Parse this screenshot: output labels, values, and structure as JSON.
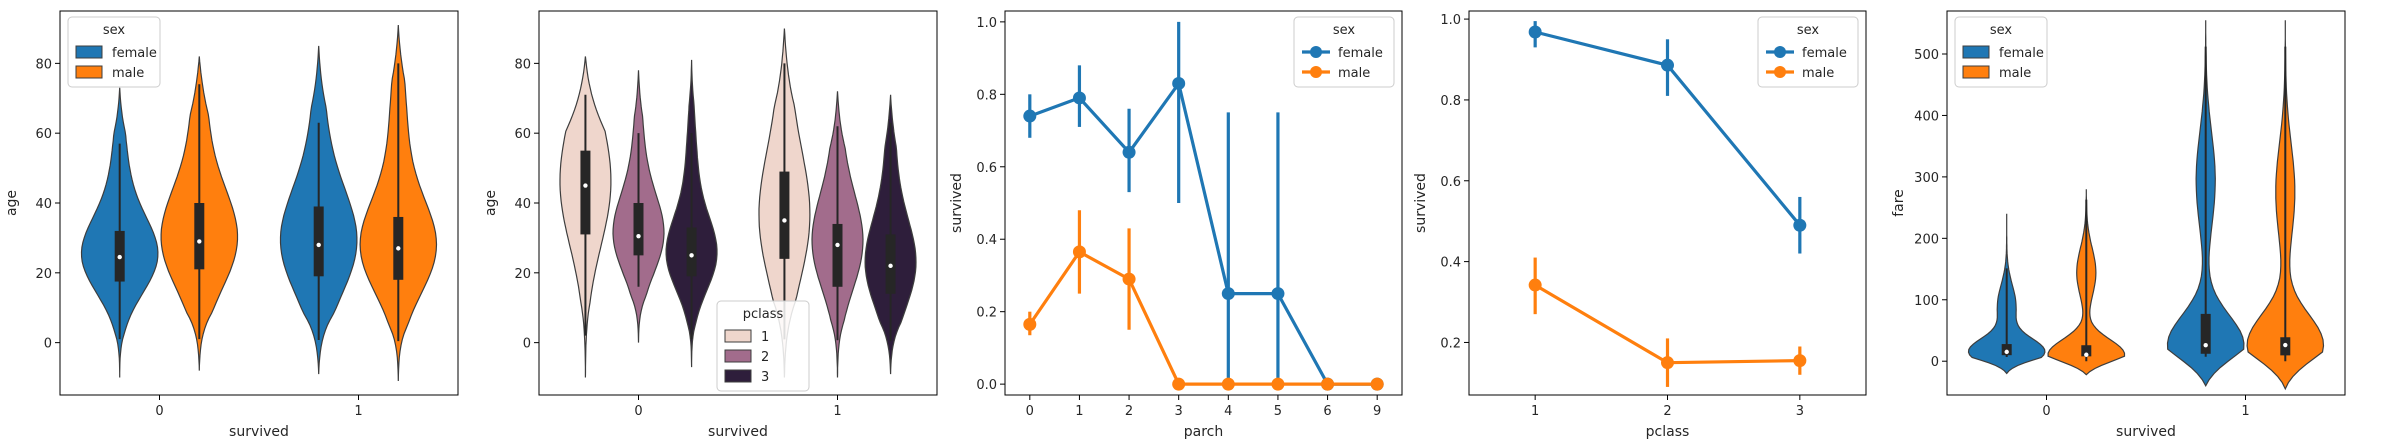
{
  "colors": {
    "female": "#1f77b4",
    "male": "#ff7f0e",
    "pclass_1": "#efd6cc",
    "pclass_2": "#a26c8c",
    "pclass_3": "#2e1e3b",
    "box": "#262626",
    "axis": "#000000"
  },
  "chart_data": [
    {
      "type": "violin",
      "xlabel": "survived",
      "ylabel": "age",
      "categories": [
        "0",
        "1"
      ],
      "hue_label": "sex",
      "hue": [
        "female",
        "male"
      ],
      "ylim": [
        -15,
        95
      ],
      "yticks": [
        0,
        20,
        40,
        60,
        80
      ],
      "legend_position": "top-left",
      "series": [
        {
          "name": "female",
          "category": "0",
          "min": 1,
          "q1": 17.5,
          "median": 24.5,
          "q3": 32,
          "max": 57,
          "kde_range": [
            -10,
            73
          ]
        },
        {
          "name": "male",
          "category": "0",
          "min": 1,
          "q1": 21,
          "median": 29,
          "q3": 40,
          "max": 74,
          "kde_range": [
            -8,
            82
          ]
        },
        {
          "name": "female",
          "category": "1",
          "min": 0.75,
          "q1": 19,
          "median": 28,
          "q3": 39,
          "max": 63,
          "kde_range": [
            -9,
            85
          ]
        },
        {
          "name": "male",
          "category": "1",
          "min": 0.42,
          "q1": 18,
          "median": 27,
          "q3": 36,
          "max": 80,
          "kde_range": [
            -11,
            91
          ]
        }
      ]
    },
    {
      "type": "violin",
      "xlabel": "survived",
      "ylabel": "age",
      "categories": [
        "0",
        "1"
      ],
      "hue_label": "pclass",
      "hue": [
        "1",
        "2",
        "3"
      ],
      "ylim": [
        -15,
        95
      ],
      "yticks": [
        0,
        20,
        40,
        60,
        80
      ],
      "legend_position": "lower-right",
      "series": [
        {
          "name": "1",
          "category": "0",
          "min": 2,
          "q1": 31,
          "median": 45,
          "q3": 55,
          "max": 71,
          "kde_range": [
            -10,
            82
          ]
        },
        {
          "name": "2",
          "category": "0",
          "min": 16,
          "q1": 25,
          "median": 30.5,
          "q3": 40,
          "max": 60,
          "kde_range": [
            0,
            78
          ]
        },
        {
          "name": "3",
          "category": "0",
          "min": 1,
          "q1": 19,
          "median": 25,
          "q3": 33,
          "max": 60,
          "kde_range": [
            -7,
            81
          ]
        },
        {
          "name": "1",
          "category": "1",
          "min": 0.92,
          "q1": 24,
          "median": 35,
          "q3": 49,
          "max": 80,
          "kde_range": [
            -10,
            90
          ]
        },
        {
          "name": "2",
          "category": "1",
          "min": 0.67,
          "q1": 16,
          "median": 28,
          "q3": 34,
          "max": 62,
          "kde_range": [
            -10,
            72
          ]
        },
        {
          "name": "3",
          "category": "1",
          "min": 0.42,
          "q1": 14,
          "median": 22,
          "q3": 31,
          "max": 63,
          "kde_range": [
            -9,
            71
          ]
        }
      ]
    },
    {
      "type": "line",
      "xlabel": "parch",
      "ylabel": "survived",
      "categories": [
        "0",
        "1",
        "2",
        "3",
        "4",
        "5",
        "6",
        "9"
      ],
      "hue_label": "sex",
      "ylim": [
        -0.03,
        1.03
      ],
      "yticks": [
        0.0,
        0.2,
        0.4,
        0.6,
        0.8,
        1.0
      ],
      "legend_position": "top-right",
      "series": [
        {
          "name": "female",
          "values": [
            0.74,
            0.79,
            0.64,
            0.83,
            0.25,
            0.25,
            0.0,
            0.0
          ],
          "ci_low": [
            0.68,
            0.71,
            0.53,
            0.5,
            0.0,
            0.0,
            0.0,
            0.0
          ],
          "ci_high": [
            0.8,
            0.88,
            0.76,
            1.0,
            0.75,
            0.75,
            0.0,
            0.0
          ]
        },
        {
          "name": "male",
          "values": [
            0.165,
            0.365,
            0.29,
            0.0,
            0.0,
            0.0,
            0.0,
            0.0
          ],
          "ci_low": [
            0.135,
            0.25,
            0.15,
            0.0,
            0.0,
            0.0,
            0.0,
            0.0
          ],
          "ci_high": [
            0.2,
            0.48,
            0.43,
            0.0,
            0.0,
            0.0,
            0.0,
            0.0
          ]
        }
      ]
    },
    {
      "type": "line",
      "xlabel": "pclass",
      "ylabel": "survived",
      "categories": [
        "1",
        "2",
        "3"
      ],
      "hue_label": "sex",
      "ylim": [
        0.07,
        1.02
      ],
      "yticks": [
        0.2,
        0.4,
        0.6,
        0.8,
        1.0
      ],
      "legend_position": "top-right",
      "series": [
        {
          "name": "female",
          "values": [
            0.968,
            0.886,
            0.49
          ],
          "ci_low": [
            0.93,
            0.81,
            0.42
          ],
          "ci_high": [
            0.995,
            0.95,
            0.56
          ]
        },
        {
          "name": "male",
          "values": [
            0.342,
            0.15,
            0.155
          ],
          "ci_low": [
            0.27,
            0.09,
            0.12
          ],
          "ci_high": [
            0.41,
            0.21,
            0.19
          ]
        }
      ]
    },
    {
      "type": "violin",
      "xlabel": "survived",
      "ylabel": "fare",
      "categories": [
        "0",
        "1"
      ],
      "hue_label": "sex",
      "hue": [
        "female",
        "male"
      ],
      "ylim": [
        -55,
        570
      ],
      "yticks": [
        0,
        100,
        200,
        300,
        400,
        500
      ],
      "legend_position": "top-left",
      "series": [
        {
          "name": "female",
          "category": "0",
          "min": 6.75,
          "q1": 9.8,
          "median": 15.2,
          "q3": 27.9,
          "max": 151,
          "kde_range": [
            -20,
            240
          ]
        },
        {
          "name": "male",
          "category": "0",
          "min": 0,
          "q1": 7.9,
          "median": 10.5,
          "q3": 26,
          "max": 263,
          "kde_range": [
            -22,
            280
          ]
        },
        {
          "name": "female",
          "category": "1",
          "min": 7.2,
          "q1": 12.1,
          "median": 26,
          "q3": 77,
          "max": 512,
          "kde_range": [
            -40,
            555
          ]
        },
        {
          "name": "male",
          "category": "1",
          "min": 0,
          "q1": 9.5,
          "median": 26.3,
          "q3": 39,
          "max": 512,
          "kde_range": [
            -45,
            555
          ]
        }
      ]
    }
  ]
}
